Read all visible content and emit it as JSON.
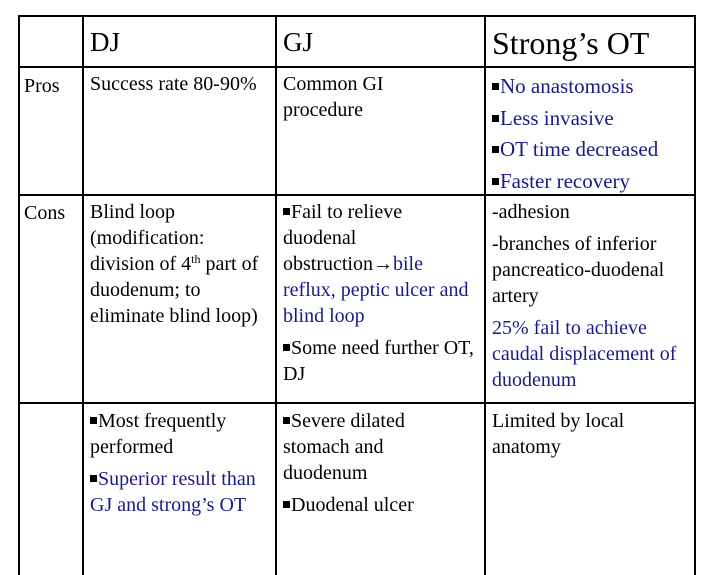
{
  "header": {
    "col_dj": "DJ",
    "col_gj": "GJ",
    "col_strong": "Strong’s OT"
  },
  "rows": {
    "pros_label": "Pros",
    "cons_label": "Cons"
  },
  "pros": {
    "dj": "Success rate 80-90%",
    "gj": "Common GI procedure",
    "strong": [
      "No anastomosis",
      "Less invasive",
      "OT time decreased",
      "Faster recovery"
    ]
  },
  "cons": {
    "dj_part1": "Blind loop (modification: division of 4",
    "dj_sup": "th",
    "dj_part2": " part of duodenum; to eliminate blind loop)",
    "gj_item1_a": "Fail to relieve duodenal obstruction",
    "gj_item1_arrow": "→",
    "gj_item1_b": "bile",
    "gj_item1_c": "reflux, peptic ulcer and blind loop",
    "gj_item2": "Some need further OT, DJ",
    "strong_1": "-adhesion",
    "strong_2": "-branches of inferior pancreatico-duodenal artery",
    "strong_3": "25% fail to achieve caudal displacement of duodenum"
  },
  "extra": {
    "dj_1": "Most frequently performed",
    "dj_2": "Superior result than GJ and strong’s OT",
    "gj_1": "Severe dilated stomach and duodenum",
    "gj_2": "Duodenal ulcer",
    "strong": "Limited by local anatomy"
  },
  "colors": {
    "blue_text": "#1a1a8c",
    "border": "#000000"
  }
}
